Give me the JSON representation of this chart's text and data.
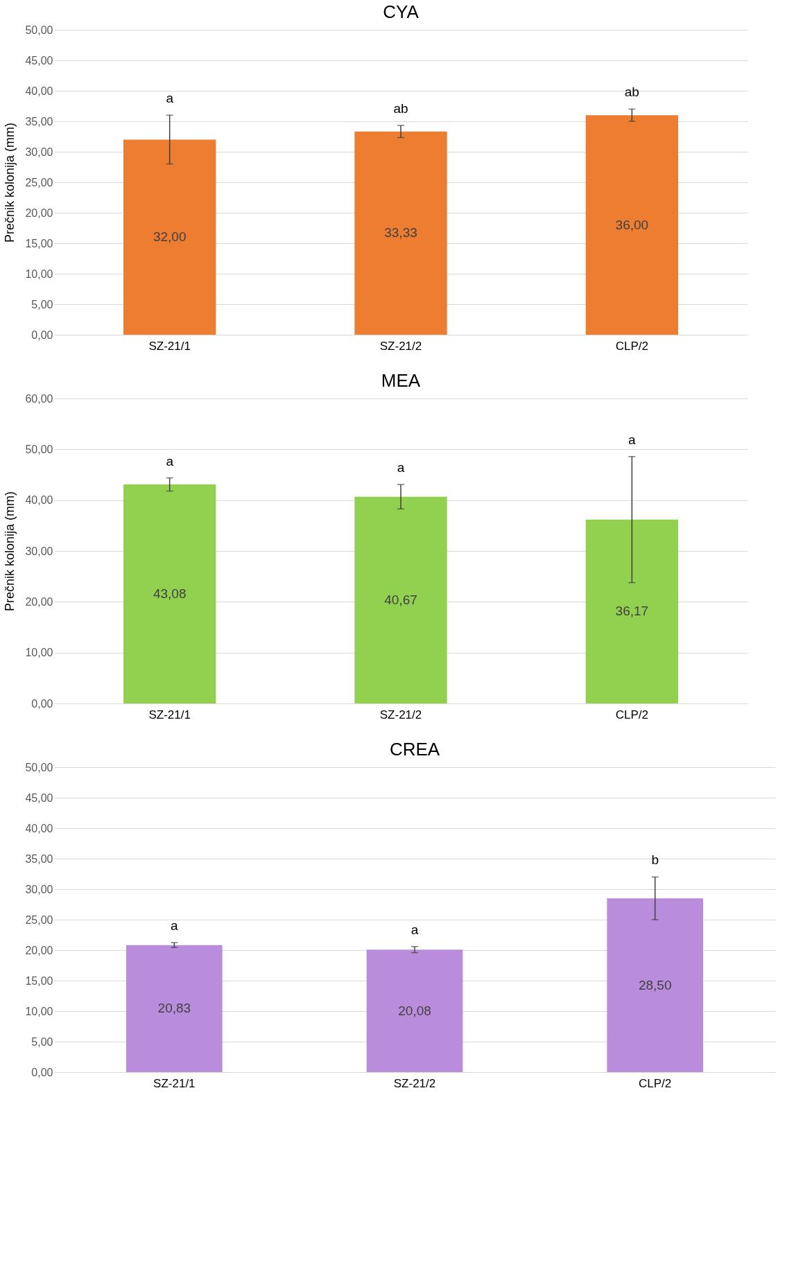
{
  "chart_data": [
    {
      "type": "bar",
      "title": "CYA",
      "ylabel": "Prečnik kolonija (mm)",
      "categories": [
        "SZ-21/1",
        "SZ-21/2",
        "CLP/2"
      ],
      "series": [
        {
          "color": "#ed7d31",
          "values": [
            32.0,
            33.33,
            36.0
          ],
          "errors": [
            4,
            1,
            1
          ],
          "value_labels": [
            "32,00",
            "33,33",
            "36,00"
          ]
        }
      ],
      "ylim": [
        0,
        50
      ],
      "yticks": [
        {
          "value": 0,
          "label": "0,00"
        },
        {
          "value": 5,
          "label": "5,00"
        },
        {
          "value": 10,
          "label": "10,00"
        },
        {
          "value": 15,
          "label": "15,00"
        },
        {
          "value": 20,
          "label": "20,00"
        },
        {
          "value": 25,
          "label": "25,00"
        },
        {
          "value": 30,
          "label": "30,00"
        },
        {
          "value": 35,
          "label": "35,00"
        },
        {
          "value": 40,
          "label": "40,00"
        },
        {
          "value": 45,
          "label": "45,00"
        },
        {
          "value": 50,
          "label": "50,00"
        }
      ],
      "grid": "y",
      "annotations": [
        "a",
        "ab",
        "ab"
      ]
    },
    {
      "type": "bar",
      "title": "MEA",
      "ylabel": "Prečnik kolonija (mm)",
      "categories": [
        "SZ-21/1",
        "SZ-21/2",
        "CLP/2"
      ],
      "series": [
        {
          "color": "#92d050",
          "values": [
            43.08,
            40.67,
            36.17
          ],
          "errors": [
            1.3,
            2.4,
            12.4
          ],
          "value_labels": [
            "43,08",
            "40,67",
            "36,17"
          ]
        }
      ],
      "ylim": [
        0,
        60
      ],
      "yticks": [
        {
          "value": 0,
          "label": "0,00"
        },
        {
          "value": 10,
          "label": "10,00"
        },
        {
          "value": 20,
          "label": "20,00"
        },
        {
          "value": 30,
          "label": "30,00"
        },
        {
          "value": 40,
          "label": "40,00"
        },
        {
          "value": 50,
          "label": "50,00"
        },
        {
          "value": 60,
          "label": "60,00"
        }
      ],
      "grid": "y",
      "annotations": [
        "a",
        "a",
        "a"
      ]
    },
    {
      "type": "bar",
      "title": "CREA",
      "categories": [
        "SZ-21/1",
        "SZ-21/2",
        "CLP/2"
      ],
      "series": [
        {
          "color": "#b98ddb",
          "values": [
            20.83,
            20.08,
            28.5
          ],
          "errors": [
            0.4,
            0.5,
            3.5
          ],
          "value_labels": [
            "20,83",
            "20,08",
            "28,50"
          ]
        }
      ],
      "ylim": [
        0,
        50
      ],
      "yticks": [
        {
          "value": 0,
          "label": "0,00"
        },
        {
          "value": 5,
          "label": "5,00"
        },
        {
          "value": 10,
          "label": "10,00"
        },
        {
          "value": 15,
          "label": "15,00"
        },
        {
          "value": 20,
          "label": "20,00"
        },
        {
          "value": 25,
          "label": "25,00"
        },
        {
          "value": 30,
          "label": "30,00"
        },
        {
          "value": 35,
          "label": "35,00"
        },
        {
          "value": 40,
          "label": "40,00"
        },
        {
          "value": 45,
          "label": "45,00"
        },
        {
          "value": 50,
          "label": "50,00"
        }
      ],
      "grid": "y",
      "annotations": [
        "a",
        "a",
        "b"
      ]
    }
  ]
}
